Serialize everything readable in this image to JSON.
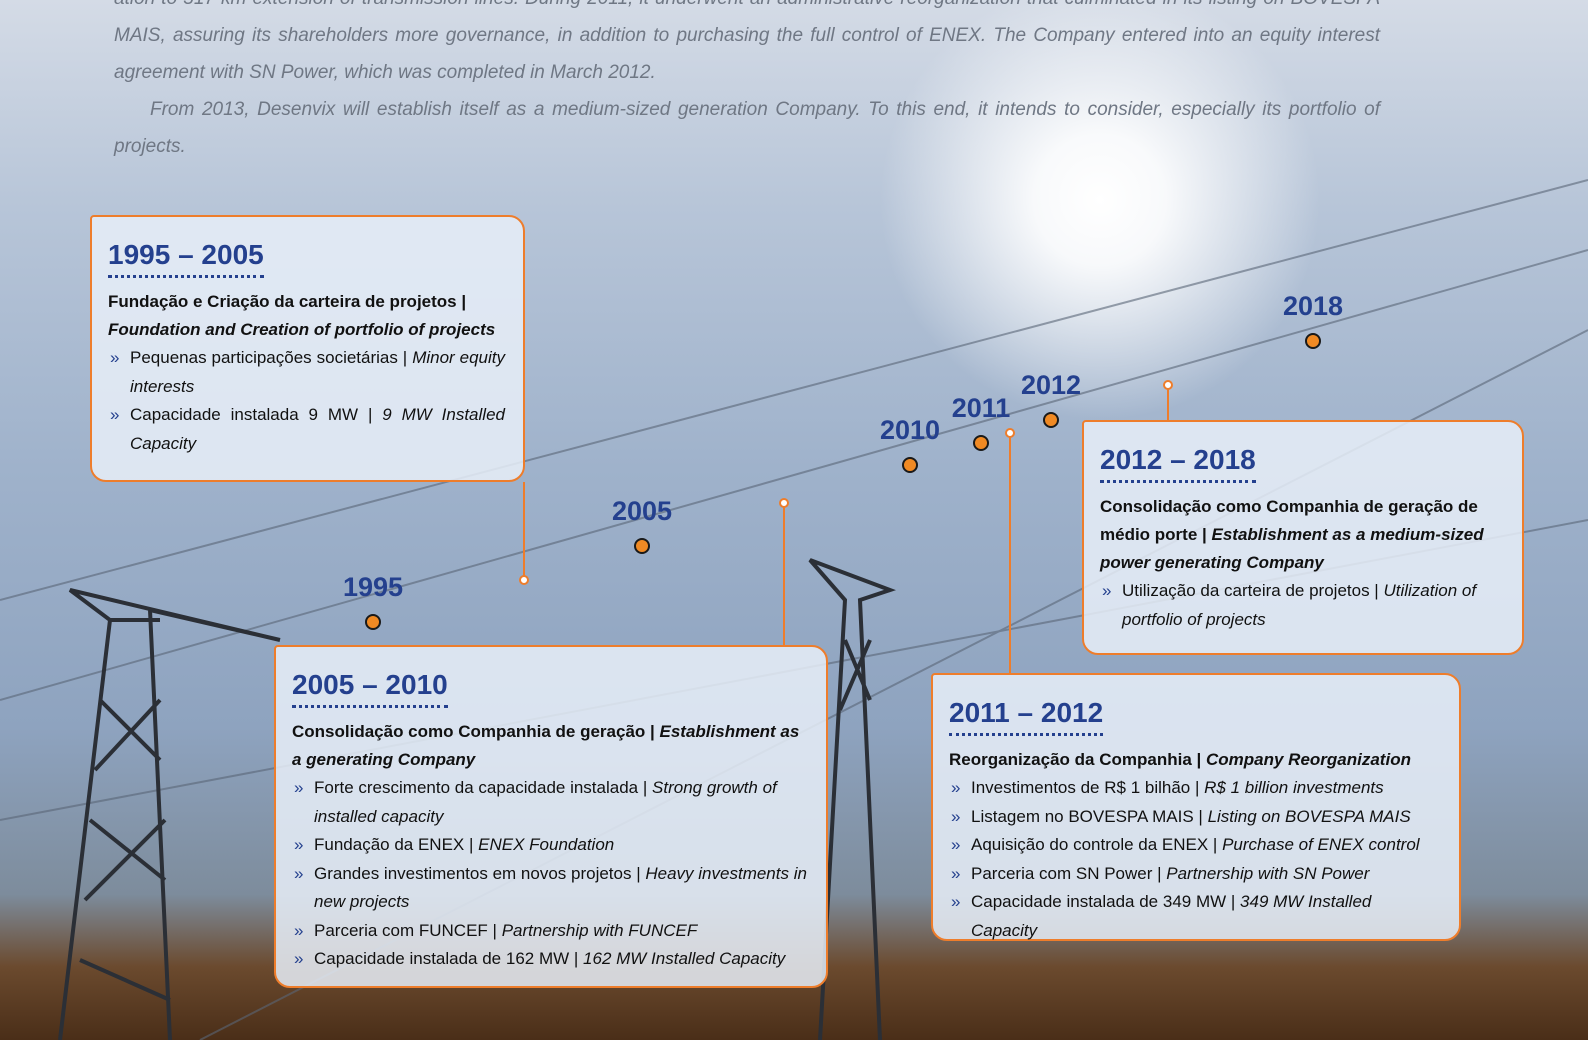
{
  "intro": {
    "paragraphs": [
      "ation to 517 km extension of transmission lines. During 2011, it underwent an administrative reorganization that culminated in its listing on BOVESPA MAIS, assuring  its shareholders more governance, in addition to purchasing the full control of ENEX. The Company entered into an equity interest agreement with SN Power, which was completed in March 2012.",
      "From 2013, Desenvix will establish itself as a medium-sized generation Company. To this end, it intends to consider, especially its portfolio of projects."
    ]
  },
  "timeline": {
    "years": [
      "1995",
      "2005",
      "2010",
      "2011",
      "2012",
      "2018"
    ]
  },
  "periods": [
    {
      "title": "1995 – 2005",
      "heading_pt": "Fundação e Criação da carteira de projetos |",
      "heading_en": "Foundation and Creation of portfolio of projects",
      "items": [
        {
          "pt": "Pequenas participações societárias |",
          "en": "Minor equity interests"
        },
        {
          "pt": "Capacidade instalada 9 MW |",
          "en": "9 MW Installed Capacity"
        }
      ]
    },
    {
      "title": "2005 – 2010",
      "heading_pt": "Consolidação como Companhia de geração |",
      "heading_en": "Establishment as a generating Company",
      "items": [
        {
          "pt": "Forte crescimento da capacidade instalada |",
          "en": "Strong growth of installed capacity"
        },
        {
          "pt": "Fundação da ENEX |",
          "en": "ENEX Foundation"
        },
        {
          "pt": "Grandes investimentos em novos projetos |",
          "en": "Heavy investments in new projects"
        },
        {
          "pt": "Parceria com FUNCEF |",
          "en": "Partnership with FUNCEF"
        },
        {
          "pt": "Capacidade instalada de 162 MW |",
          "en": "162 MW Installed Capacity"
        }
      ]
    },
    {
      "title": "2011 – 2012",
      "heading_pt": "Reorganização da Companhia |",
      "heading_en": "Company Reorganization",
      "items": [
        {
          "pt": "Investimentos de R$ 1 bilhão |",
          "en": "R$ 1 billion investments"
        },
        {
          "pt": "Listagem no BOVESPA MAIS |",
          "en": "Listing on BOVESPA MAIS"
        },
        {
          "pt": "Aquisição do controle da ENEX |",
          "en": "Purchase of ENEX control"
        },
        {
          "pt": "Parceria com SN Power |",
          "en": "Partnership with SN Power"
        },
        {
          "pt": "Capacidade instalada de 349 MW |",
          "en": "349 MW Installed Capacity"
        }
      ]
    },
    {
      "title": "2012 – 2018",
      "heading_pt": "Consolidação como Companhia de geração de médio porte |",
      "heading_en": "Establishment as a medium-sized power generating Company",
      "items": [
        {
          "pt": "Utilização da carteira de projetos |",
          "en": "Utilization of portfolio of projects"
        }
      ]
    }
  ]
}
